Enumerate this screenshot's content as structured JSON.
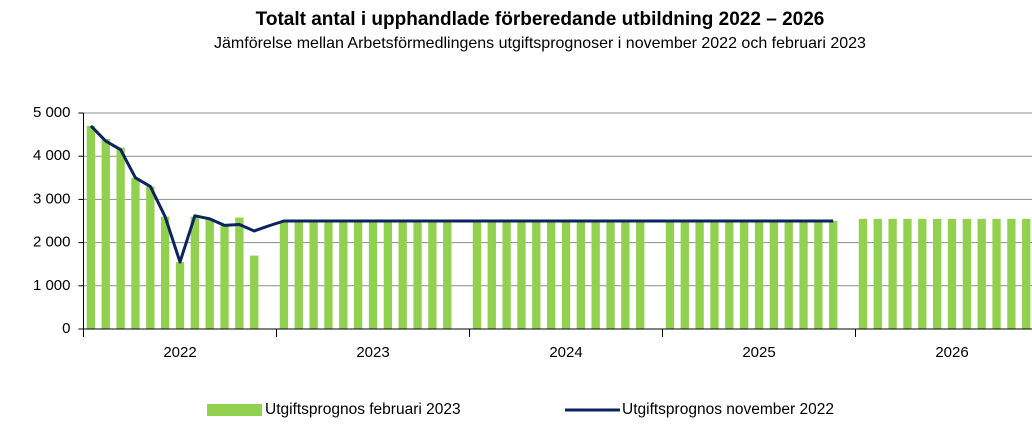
{
  "chart_data": {
    "type": "bar-line",
    "title": "Totalt antal i upphandlade förberedande utbildning 2022 – 2026",
    "subtitle": "Jämförelse mellan Arbetsförmedlingens utgiftsprognoser i november 2022 och februari 2023",
    "groups": [
      "2022",
      "2023",
      "2024",
      "2025",
      "2026"
    ],
    "ylim": [
      0,
      5000
    ],
    "yticks": [
      0,
      {
        "value": 1000,
        "label": "1 000"
      },
      {
        "value": 2000,
        "label": "2 000"
      },
      {
        "value": 3000,
        "label": "3 000"
      },
      {
        "value": 4000,
        "label": "4 000"
      },
      {
        "value": 5000,
        "label": "5 000"
      }
    ],
    "grid": true,
    "legend": "bottom",
    "series": [
      {
        "name": "Utgiftsprognos februari 2023",
        "type": "bar",
        "color": "#92d050",
        "values": [
          4700,
          4400,
          4200,
          3500,
          3300,
          2600,
          1550,
          2600,
          2550,
          2400,
          2580,
          1700,
          null,
          2500,
          2500,
          2500,
          2500,
          2500,
          2500,
          2500,
          2500,
          2500,
          2500,
          2500,
          2500,
          null,
          2500,
          2500,
          2500,
          2500,
          2500,
          2500,
          2500,
          2500,
          2500,
          2500,
          2500,
          2500,
          null,
          2500,
          2500,
          2500,
          2500,
          2500,
          2500,
          2500,
          2500,
          2500,
          2500,
          2500,
          2500,
          null,
          2550,
          2550,
          2550,
          2550,
          2550,
          2550,
          2550,
          2550,
          2550,
          2550,
          2550,
          2550,
          null
        ]
      },
      {
        "name": "Utgiftsprognos november 2022",
        "type": "line",
        "color": "#0c2360",
        "values": [
          4700,
          4350,
          4150,
          3500,
          3300,
          2600,
          1550,
          2620,
          2550,
          2400,
          2420,
          2270,
          2390,
          2500,
          2500,
          2500,
          2500,
          2500,
          2500,
          2500,
          2500,
          2500,
          2500,
          2500,
          2500,
          2500,
          2500,
          2500,
          2500,
          2500,
          2500,
          2500,
          2500,
          2500,
          2500,
          2500,
          2500,
          2500,
          2500,
          2500,
          2500,
          2500,
          2500,
          2500,
          2500,
          2500,
          2500,
          2500,
          2500,
          2500,
          2500,
          null,
          null,
          null,
          null,
          null,
          null,
          null,
          null,
          null,
          null,
          null,
          null,
          null,
          null
        ]
      }
    ]
  }
}
